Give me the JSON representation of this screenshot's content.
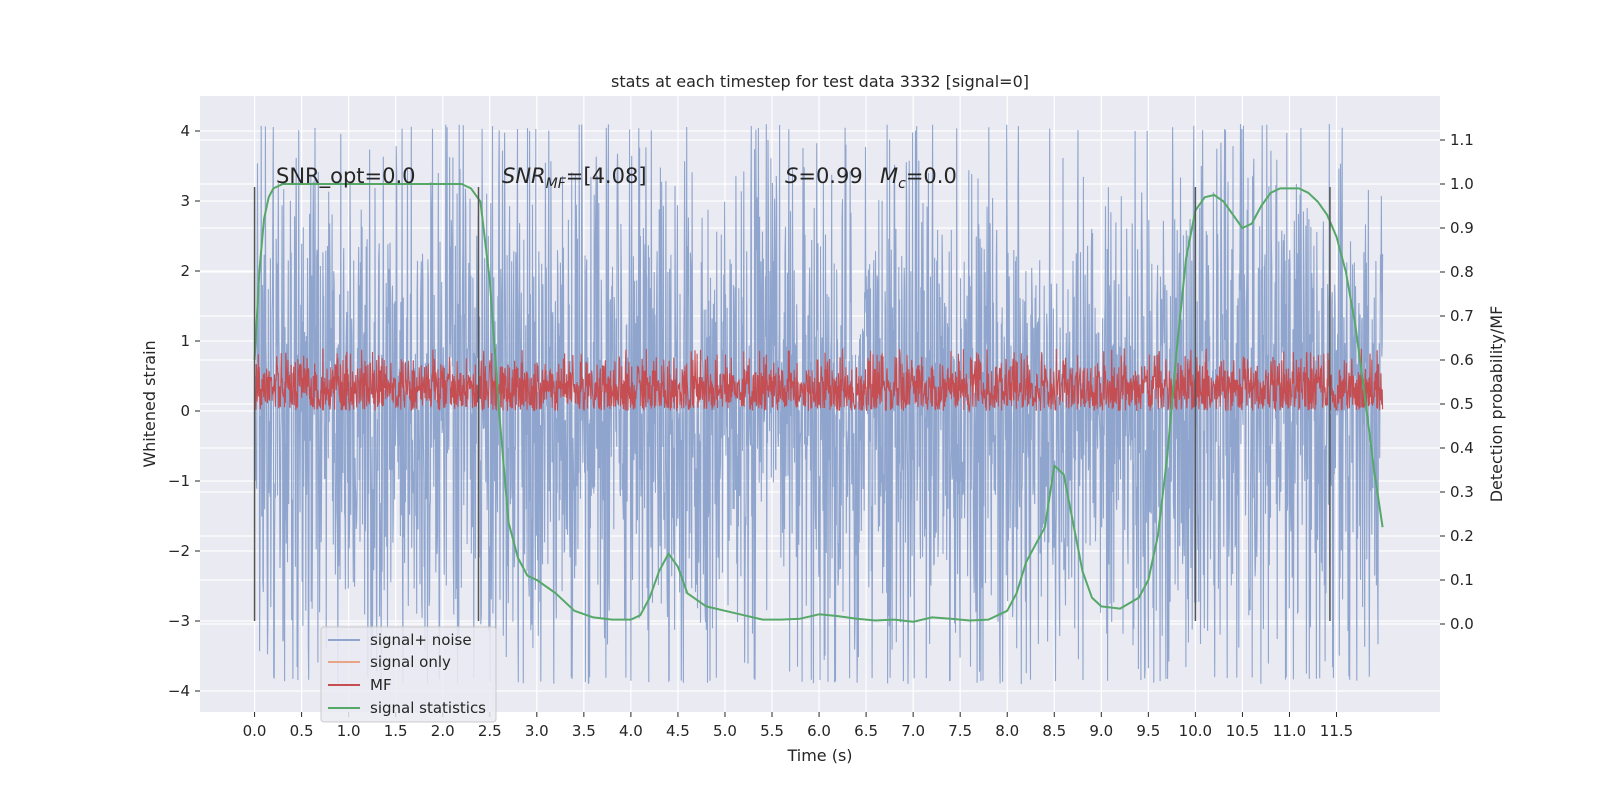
{
  "chart_data": {
    "type": "line",
    "title": "stats at each timestep for test data 3332 [signal=0]",
    "xlabel": "Time (s)",
    "ylabel": "Whitened strain",
    "y2label": "Detection probability/MF",
    "xlim": [
      -0.58,
      12.6
    ],
    "ylim": [
      -4.3,
      4.5
    ],
    "y2lim": [
      -0.2,
      1.2
    ],
    "x_ticks": [
      0.0,
      0.5,
      1.0,
      1.5,
      2.0,
      2.5,
      3.0,
      3.5,
      4.0,
      4.5,
      5.0,
      5.5,
      6.0,
      6.5,
      7.0,
      7.5,
      8.0,
      8.5,
      9.0,
      9.5,
      10.0,
      10.5,
      11.0,
      11.5
    ],
    "x_tick_labels": [
      "0.0",
      "0.5",
      "1.0",
      "1.5",
      "2.0",
      "2.5",
      "3.0",
      "3.5",
      "4.0",
      "4.5",
      "5.0",
      "5.5",
      "6.0",
      "6.5",
      "7.0",
      "7.5",
      "8.0",
      "8.5",
      "9.0",
      "9.5",
      "10.0",
      "10.5",
      "11.0",
      "11.5"
    ],
    "y_ticks": [
      -4,
      -3,
      -2,
      -1,
      0,
      1,
      2,
      3,
      4
    ],
    "y_tick_labels": [
      "−4",
      "−3",
      "−2",
      "−1",
      "0",
      "1",
      "2",
      "3",
      "4"
    ],
    "y2_ticks": [
      0.0,
      0.1,
      0.2,
      0.3,
      0.4,
      0.5,
      0.6,
      0.7,
      0.8,
      0.9,
      1.0,
      1.1
    ],
    "y2_tick_labels": [
      "0.0",
      "0.1",
      "0.2",
      "0.3",
      "0.4",
      "0.5",
      "0.6",
      "0.7",
      "0.8",
      "0.9",
      "1.0",
      "1.1"
    ],
    "grid": true,
    "legend_position": "lower-left",
    "legend": [
      {
        "label": "signal+ noise",
        "color": "#8fa5cd"
      },
      {
        "label": "signal only",
        "color": "#e8a487"
      },
      {
        "label": "MF",
        "color": "#c44e52"
      },
      {
        "label": "signal statistics",
        "color": "#55a868"
      }
    ],
    "annotations": {
      "snr_opt": "SNR_opt=0.0",
      "snr_mf_label": "SNR",
      "snr_mf_sub": "MF",
      "snr_mf_value": "=[4.08]",
      "s_label": "S",
      "s_value": "=0.99",
      "mc_label": "M",
      "mc_sub": "c",
      "mc_value": "=0.0"
    },
    "series": [
      {
        "name": "signal+ noise",
        "color": "#8fa5cd",
        "x_range": [
          0.0,
          11.99
        ],
        "envelope_upper": 1.9,
        "envelope_lower": -2.0,
        "extreme_high": 4.1,
        "extreme_low": -3.9
      },
      {
        "name": "MF",
        "color": "#c44e52",
        "x_range": [
          0.0,
          11.99
        ],
        "envelope_upper": 0.62,
        "envelope_lower": 0.02,
        "extreme_high": 0.9,
        "extreme_low": 0.0
      },
      {
        "name": "signal statistics",
        "color": "#55a868",
        "axis": "right",
        "x": [
          0.0,
          0.05,
          0.1,
          0.15,
          0.2,
          0.3,
          0.5,
          1.0,
          1.5,
          2.0,
          2.2,
          2.3,
          2.4,
          2.5,
          2.6,
          2.7,
          2.8,
          2.9,
          3.0,
          3.2,
          3.4,
          3.6,
          3.8,
          4.0,
          4.1,
          4.2,
          4.3,
          4.4,
          4.5,
          4.6,
          4.8,
          5.0,
          5.2,
          5.4,
          5.6,
          5.8,
          6.0,
          6.2,
          6.4,
          6.6,
          6.8,
          7.0,
          7.2,
          7.4,
          7.6,
          7.8,
          8.0,
          8.1,
          8.2,
          8.3,
          8.4,
          8.5,
          8.6,
          8.7,
          8.8,
          8.9,
          9.0,
          9.2,
          9.4,
          9.5,
          9.6,
          9.7,
          9.8,
          9.9,
          10.0,
          10.1,
          10.2,
          10.3,
          10.4,
          10.5,
          10.6,
          10.7,
          10.8,
          10.9,
          11.0,
          11.1,
          11.2,
          11.3,
          11.4,
          11.5,
          11.6,
          11.7,
          11.8,
          11.9,
          11.99
        ],
        "y": [
          0.6,
          0.8,
          0.92,
          0.97,
          0.99,
          1.0,
          1.0,
          1.0,
          1.0,
          1.0,
          1.0,
          0.99,
          0.96,
          0.78,
          0.48,
          0.23,
          0.15,
          0.11,
          0.1,
          0.07,
          0.03,
          0.015,
          0.01,
          0.01,
          0.02,
          0.06,
          0.12,
          0.16,
          0.13,
          0.07,
          0.04,
          0.03,
          0.02,
          0.01,
          0.01,
          0.012,
          0.022,
          0.018,
          0.012,
          0.008,
          0.01,
          0.005,
          0.015,
          0.012,
          0.008,
          0.01,
          0.03,
          0.07,
          0.14,
          0.18,
          0.22,
          0.36,
          0.34,
          0.23,
          0.12,
          0.06,
          0.04,
          0.035,
          0.06,
          0.1,
          0.2,
          0.38,
          0.62,
          0.83,
          0.94,
          0.97,
          0.975,
          0.96,
          0.93,
          0.9,
          0.91,
          0.95,
          0.98,
          0.99,
          0.99,
          0.99,
          0.98,
          0.96,
          0.93,
          0.88,
          0.8,
          0.68,
          0.52,
          0.35,
          0.22
        ]
      }
    ],
    "vertical_lines": [
      {
        "x": 0.0,
        "y_range": [
          -3.0,
          3.2
        ],
        "color": "#555555"
      },
      {
        "x": 2.38,
        "y_range": [
          -3.0,
          3.2
        ],
        "color": "#555555"
      },
      {
        "x": 10.0,
        "y_range": [
          -3.0,
          3.2
        ],
        "color": "#555555"
      },
      {
        "x": 11.43,
        "y_range": [
          -3.0,
          3.2
        ],
        "color": "#555555"
      }
    ]
  }
}
